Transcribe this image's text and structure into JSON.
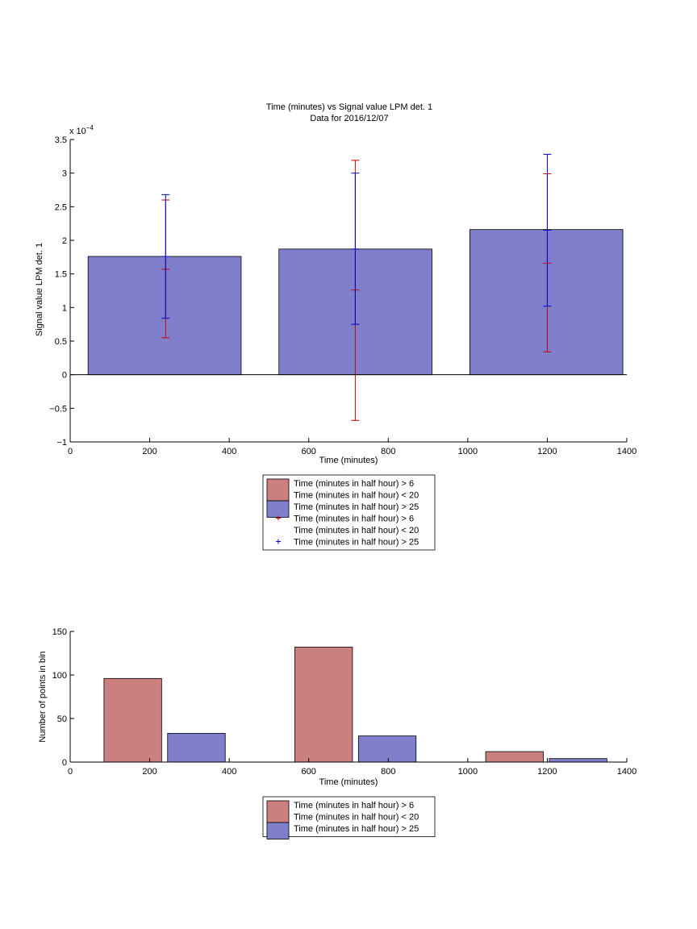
{
  "colors": {
    "series_red": "#cc7f7f",
    "series_blue": "#7f7fcc",
    "err_red": "#cc0000",
    "err_blue": "#0000cc"
  },
  "chart_data": [
    {
      "type": "bar",
      "title": "Time (minutes) vs Signal value LPM det. 1",
      "subtitle": "Data for 2016/12/07",
      "xlabel": "Time (minutes)",
      "ylabel": "Signal value LPM det. 1",
      "y_exponent": "x 10",
      "y_exponent_power": "−4",
      "xlim": [
        0,
        1400
      ],
      "ylim": [
        -1,
        3.5
      ],
      "xticks": [
        "0",
        "200",
        "400",
        "600",
        "800",
        "1000",
        "1200",
        "1400"
      ],
      "yticks": [
        "−1",
        "−0.5",
        "0",
        "0.5",
        "1",
        "1.5",
        "2",
        "2.5",
        "3",
        "3.5"
      ],
      "grid": false,
      "bars": [
        {
          "x_start": 45,
          "x_end": 430,
          "value": 1.76
        },
        {
          "x_start": 525,
          "x_end": 910,
          "value": 1.87
        },
        {
          "x_start": 1005,
          "x_end": 1390,
          "value": 2.16
        }
      ],
      "errorbars": [
        {
          "name": "Time (minutes in half hour) > 6\nTime (minutes in half hour) < 20",
          "x": 240,
          "low": 0.55,
          "mid": 1.57,
          "high": 2.6
        },
        {
          "name": "Time (minutes in half hour) > 25",
          "x": 240,
          "low": 0.84,
          "mid": 1.76,
          "high": 2.68
        },
        {
          "name": "Time (minutes in half hour) > 6\nTime (minutes in half hour) < 20",
          "x": 717,
          "low": -0.68,
          "mid": 1.26,
          "high": 3.19
        },
        {
          "name": "Time (minutes in half hour) > 25",
          "x": 717,
          "low": 0.75,
          "mid": 1.87,
          "high": 3.0
        },
        {
          "name": "Time (minutes in half hour) > 6\nTime (minutes in half hour) < 20",
          "x": 1200,
          "low": 0.34,
          "mid": 1.66,
          "high": 2.99
        },
        {
          "name": "Time (minutes in half hour) > 25",
          "x": 1200,
          "low": 1.02,
          "mid": 2.15,
          "high": 3.28
        }
      ],
      "legend": [
        {
          "kind": "patch",
          "color": "series_red",
          "lines": [
            "Time (minutes in half hour) > 6",
            "Time (minutes in half hour) < 20"
          ]
        },
        {
          "kind": "patch",
          "color": "series_blue",
          "lines": [
            "Time (minutes in half hour) > 25"
          ]
        },
        {
          "kind": "marker",
          "color": "err_red",
          "lines": [
            "Time (minutes in half hour) > 6",
            "Time (minutes in half hour) < 20"
          ]
        },
        {
          "kind": "marker",
          "color": "err_blue",
          "lines": [
            "Time (minutes in half hour) > 25"
          ]
        }
      ],
      "legend_placement": "below"
    },
    {
      "type": "bar",
      "xlabel": "Time (minutes)",
      "ylabel": "Number of points in bin",
      "xlim": [
        0,
        1400
      ],
      "ylim": [
        0,
        150
      ],
      "xticks": [
        "0",
        "200",
        "400",
        "600",
        "800",
        "1000",
        "1200",
        "1400"
      ],
      "yticks": [
        "0",
        "50",
        "100",
        "150"
      ],
      "grid": false,
      "series": [
        {
          "name": "Time (minutes in half hour) > 6\nTime (minutes in half hour) < 20",
          "color": "series_red",
          "bars": [
            {
              "x_start": 85,
              "x_end": 230,
              "value": 96
            },
            {
              "x_start": 565,
              "x_end": 710,
              "value": 132
            },
            {
              "x_start": 1045,
              "x_end": 1190,
              "value": 12
            }
          ]
        },
        {
          "name": "Time (minutes in half hour) > 25",
          "color": "series_blue",
          "bars": [
            {
              "x_start": 245,
              "x_end": 390,
              "value": 33
            },
            {
              "x_start": 725,
              "x_end": 870,
              "value": 30
            },
            {
              "x_start": 1205,
              "x_end": 1350,
              "value": 4
            }
          ]
        }
      ],
      "legend": [
        {
          "kind": "patch",
          "color": "series_red",
          "lines": [
            "Time (minutes in half hour) > 6",
            "Time (minutes in half hour) < 20"
          ]
        },
        {
          "kind": "patch",
          "color": "series_blue",
          "lines": [
            "Time (minutes in half hour) > 25"
          ]
        }
      ],
      "legend_placement": "below"
    }
  ]
}
